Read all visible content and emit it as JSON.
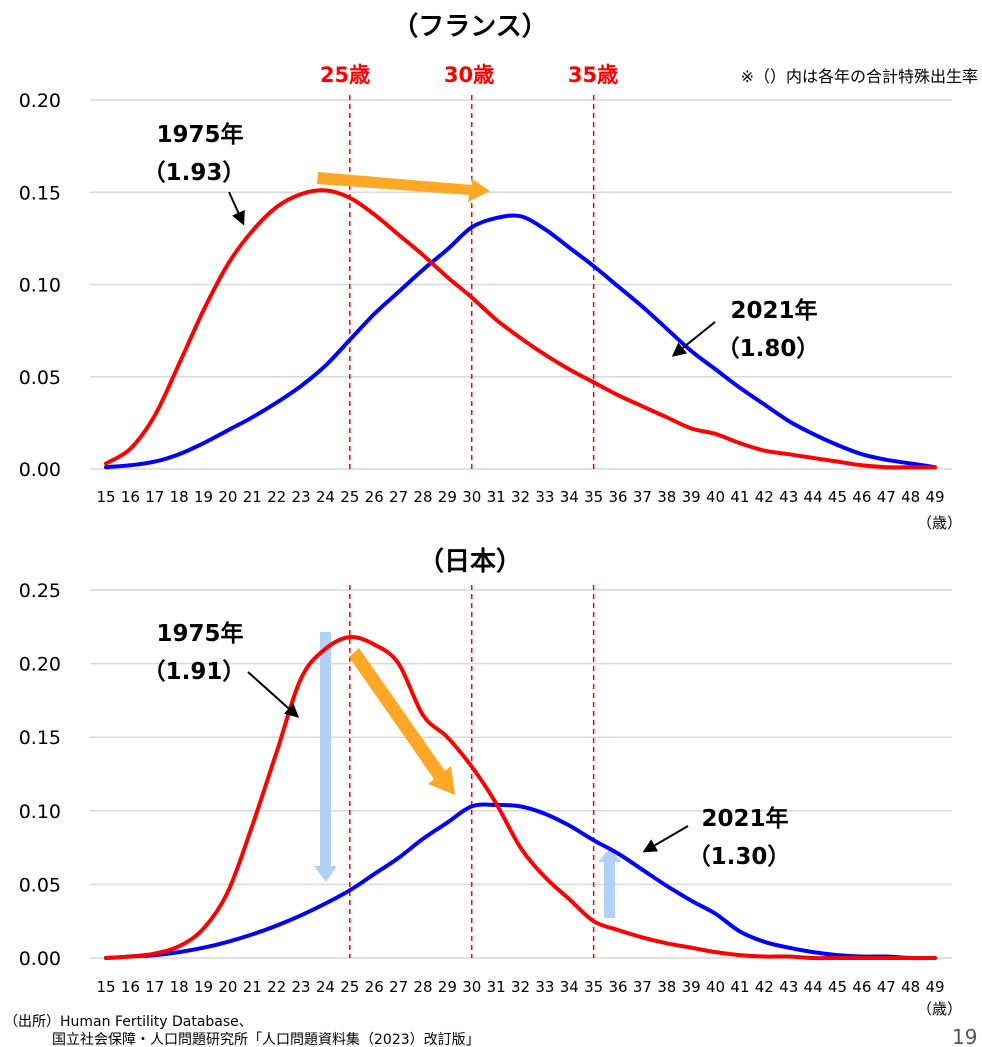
{
  "note": "※（）内は各年の合計特殊出生率",
  "age_markers": [
    "25歳",
    "30歳",
    "35歳"
  ],
  "x_unit": "（歳）",
  "source_lines": [
    "（出所）Human Fertility Database、",
    "国立社会保障・人口問題研究所「人口問題資料集（2023）改訂版」"
  ],
  "page_number": "19",
  "colors": {
    "series_1975": "#ff0000",
    "series_2021": "#0000ff",
    "age_line": "#ff0000",
    "shift_arrow": "#ffa726",
    "change_arrow": "#b3d1f7",
    "grid": "#d9d9d9"
  },
  "annotations": {
    "france": [
      {
        "label": "1975年",
        "value": "（1.93）"
      },
      {
        "label": "2021年",
        "value": "（1.80）"
      }
    ],
    "japan": [
      {
        "label": "1975年",
        "value": "（1.91）"
      },
      {
        "label": "2021年",
        "value": "（1.30）"
      }
    ]
  },
  "chart_data": [
    {
      "type": "line",
      "title": "（フランス）",
      "x": [
        15,
        16,
        17,
        18,
        19,
        20,
        21,
        22,
        23,
        24,
        25,
        26,
        27,
        28,
        29,
        30,
        31,
        32,
        33,
        34,
        35,
        36,
        37,
        38,
        39,
        40,
        41,
        42,
        43,
        44,
        45,
        46,
        47,
        48,
        49
      ],
      "xlabel": "（歳）",
      "ylim": [
        0,
        0.2
      ],
      "yticks": [
        "0.00",
        "0.05",
        "0.10",
        "0.15",
        "0.20"
      ],
      "vlines": [
        25,
        30,
        35
      ],
      "series": [
        {
          "name": "1975年",
          "values": [
            0.003,
            0.011,
            0.029,
            0.057,
            0.086,
            0.111,
            0.129,
            0.142,
            0.149,
            0.151,
            0.147,
            0.138,
            0.127,
            0.116,
            0.104,
            0.093,
            0.081,
            0.071,
            0.062,
            0.054,
            0.047,
            0.04,
            0.034,
            0.028,
            0.022,
            0.019,
            0.014,
            0.01,
            0.008,
            0.006,
            0.004,
            0.002,
            0.001,
            0.001,
            0.001
          ]
        },
        {
          "name": "2021年",
          "values": [
            0.001,
            0.002,
            0.004,
            0.008,
            0.014,
            0.021,
            0.028,
            0.036,
            0.045,
            0.056,
            0.07,
            0.084,
            0.096,
            0.108,
            0.119,
            0.131,
            0.136,
            0.137,
            0.13,
            0.12,
            0.11,
            0.099,
            0.088,
            0.076,
            0.064,
            0.054,
            0.044,
            0.035,
            0.026,
            0.019,
            0.013,
            0.008,
            0.005,
            0.003,
            0.001
          ]
        }
      ]
    },
    {
      "type": "line",
      "title": "（日本）",
      "x": [
        15,
        16,
        17,
        18,
        19,
        20,
        21,
        22,
        23,
        24,
        25,
        26,
        27,
        28,
        29,
        30,
        31,
        32,
        33,
        34,
        35,
        36,
        37,
        38,
        39,
        40,
        41,
        42,
        43,
        44,
        45,
        46,
        47,
        48,
        49
      ],
      "xlabel": "（歳）",
      "ylim": [
        0,
        0.25
      ],
      "yticks": [
        "0.00",
        "0.05",
        "0.10",
        "0.15",
        "0.20",
        "0.25"
      ],
      "vlines": [
        25,
        30,
        35
      ],
      "series": [
        {
          "name": "1975年",
          "values": [
            0.0,
            0.001,
            0.003,
            0.008,
            0.02,
            0.045,
            0.09,
            0.14,
            0.19,
            0.21,
            0.218,
            0.213,
            0.2,
            0.165,
            0.15,
            0.13,
            0.105,
            0.075,
            0.055,
            0.04,
            0.025,
            0.019,
            0.014,
            0.01,
            0.007,
            0.004,
            0.002,
            0.001,
            0.001,
            0.0,
            0.0,
            0.0,
            0.0,
            0.0,
            0.0
          ]
        },
        {
          "name": "2021年",
          "values": [
            0.0,
            0.001,
            0.002,
            0.004,
            0.007,
            0.011,
            0.016,
            0.022,
            0.029,
            0.037,
            0.046,
            0.057,
            0.068,
            0.081,
            0.092,
            0.103,
            0.104,
            0.103,
            0.098,
            0.09,
            0.08,
            0.071,
            0.06,
            0.049,
            0.039,
            0.03,
            0.018,
            0.011,
            0.007,
            0.004,
            0.002,
            0.001,
            0.001,
            0.0,
            0.0
          ]
        }
      ]
    }
  ]
}
